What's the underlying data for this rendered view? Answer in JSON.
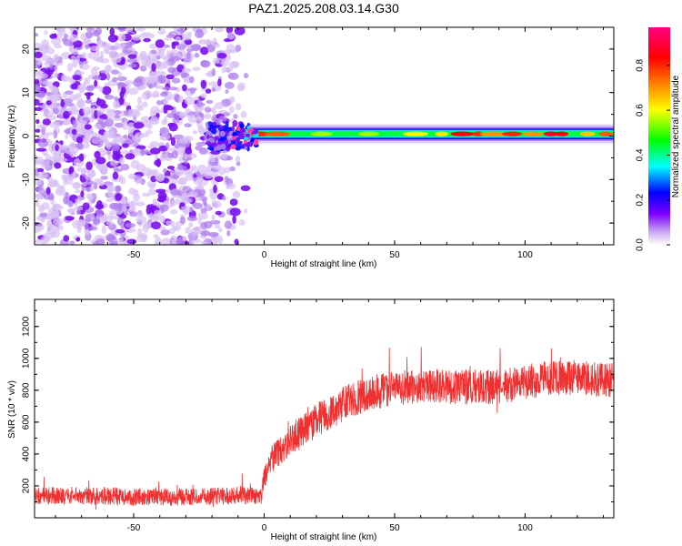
{
  "figure": {
    "title": "PAZ1.2025.208.03.14.G30"
  },
  "chart_data": [
    {
      "type": "heatmap",
      "xlabel": "Height of straight line (km)",
      "ylabel": "Frequency (Hz)",
      "xlim": [
        -88,
        134
      ],
      "ylim": [
        -25,
        25
      ],
      "xticks": [
        -50,
        0,
        50,
        100
      ],
      "yticks": [
        -20,
        -10,
        0,
        10,
        20
      ],
      "grid": false,
      "colorbar": {
        "label": "Normalized spectral amplitude",
        "range": [
          0,
          0.97
        ],
        "ticks": [
          0.0,
          0.2,
          0.4,
          0.6,
          0.8
        ],
        "colormap": [
          "#e8d8f8",
          "#8000ff",
          "#0000ff",
          "#00ffff",
          "#00ff00",
          "#ffff00",
          "#ff8000",
          "#ff0000",
          "#ff0080"
        ]
      },
      "regions": [
        {
          "x_range": [
            -88,
            -6
          ],
          "y_range": [
            -25,
            25
          ],
          "amplitude_range": [
            0.05,
            0.2
          ],
          "pattern": "scattered noise"
        },
        {
          "x_range": [
            -6,
            134
          ],
          "y_range": [
            -1.5,
            2.5
          ],
          "center_frequency": 0.5,
          "amplitude_range": [
            0.3,
            0.95
          ],
          "pattern": "narrow signal band"
        }
      ]
    },
    {
      "type": "line",
      "xlabel": "Height of straight line (km)",
      "ylabel": "SNR (10 * v/v)",
      "xlim": [
        -88,
        134
      ],
      "ylim": [
        0,
        1370
      ],
      "xticks": [
        -50,
        0,
        50,
        100
      ],
      "yticks": [
        200,
        400,
        600,
        800,
        1000,
        1200
      ],
      "grid": false,
      "series": [
        {
          "color": "#f03030",
          "x": [
            -88,
            -70,
            -50,
            -30,
            -10,
            -1,
            0,
            2,
            5,
            10,
            15,
            20,
            25,
            30,
            35,
            40,
            50,
            60,
            70,
            80,
            90,
            100,
            110,
            120,
            134
          ],
          "y": [
            140,
            140,
            130,
            130,
            140,
            140,
            260,
            340,
            400,
            480,
            550,
            610,
            660,
            710,
            750,
            780,
            810,
            830,
            820,
            820,
            820,
            850,
            880,
            880,
            860
          ]
        }
      ]
    }
  ]
}
